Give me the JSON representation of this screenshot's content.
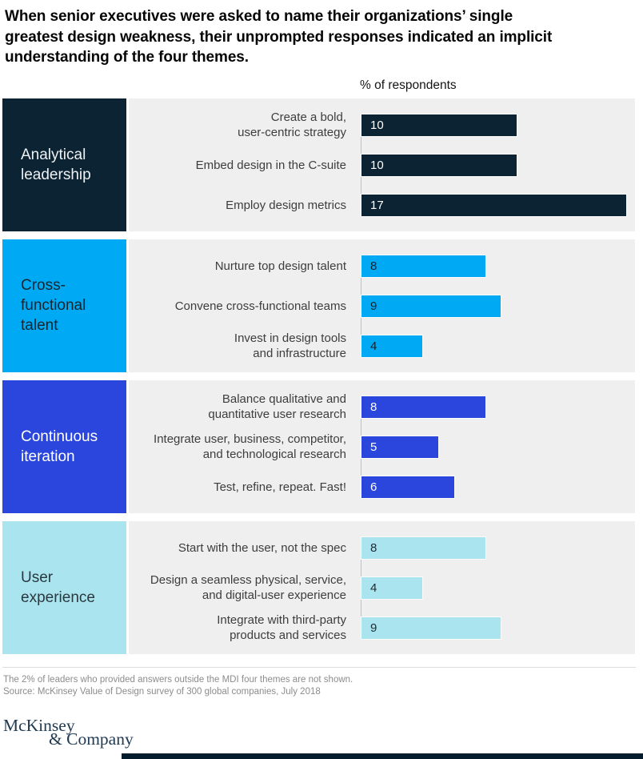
{
  "chart_data": {
    "type": "bar",
    "orientation": "horizontal",
    "title": "When senior executives were asked to name their organizations’ single\ngreatest design weakness, their unprompted responses indicated an implicit\nunderstanding of the four themes.",
    "value_label": "% of respondents",
    "xmax": 17,
    "grid": false,
    "panel_background": "#efefef",
    "groups": [
      {
        "theme": "Analytical\nleadership",
        "color": "#0c2333",
        "text_color": "#eef1f3",
        "bar_text_color": "#ffffff",
        "items": [
          {
            "label": "Create a bold,\nuser-centric strategy",
            "value": 10
          },
          {
            "label": "Embed design in the C-suite",
            "value": 10
          },
          {
            "label": "Employ design metrics",
            "value": 17
          }
        ]
      },
      {
        "theme": "Cross-\nfunctional\ntalent",
        "color": "#00a9f4",
        "text_color": "#16262f",
        "bar_text_color": "#14232c",
        "items": [
          {
            "label": "Nurture top design talent",
            "value": 8
          },
          {
            "label": "Convene cross-functional teams",
            "value": 9
          },
          {
            "label": "Invest in design tools\nand infrastructure",
            "value": 4
          }
        ]
      },
      {
        "theme": "Continuous\niteration",
        "color": "#2b46dd",
        "text_color": "#ffffff",
        "bar_text_color": "#ffffff",
        "items": [
          {
            "label": "Balance qualitative and\nquantitative user research",
            "value": 8
          },
          {
            "label": "Integrate user, business, competitor,\nand technological research",
            "value": 5
          },
          {
            "label": "Test, refine, repeat. Fast!",
            "value": 6
          }
        ]
      },
      {
        "theme": "User\nexperience",
        "color": "#aae4ef",
        "text_color": "#2b3940",
        "bar_text_color": "#1e2b32",
        "items": [
          {
            "label": "Start with the user, not the spec",
            "value": 8
          },
          {
            "label": "Design a seamless physical, service,\nand digital-user experience",
            "value": 4
          },
          {
            "label": "Integrate with third-party\nproducts and services",
            "value": 9
          }
        ]
      }
    ]
  },
  "footer": {
    "note": "The 2% of leaders who provided answers outside the MDI four themes are not shown.",
    "source": "Source: McKinsey Value of Design survey of 300 global companies, July 2018",
    "logo_line1": "McKinsey",
    "logo_line2": "& Company",
    "bar_color": "#051c2c"
  }
}
